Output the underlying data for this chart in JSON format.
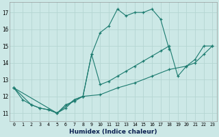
{
  "xlabel": "Humidex (Indice chaleur)",
  "background_color": "#cce8e6",
  "grid_color": "#b5d5d2",
  "line_color": "#1a7a6e",
  "xlim": [
    -0.5,
    23.5
  ],
  "ylim": [
    10.5,
    17.6
  ],
  "xticks": [
    0,
    1,
    2,
    3,
    4,
    5,
    6,
    7,
    8,
    9,
    10,
    11,
    12,
    13,
    14,
    15,
    16,
    17,
    18,
    19,
    20,
    21,
    22,
    23
  ],
  "yticks": [
    11,
    12,
    13,
    14,
    15,
    16,
    17
  ],
  "lines": [
    {
      "x": [
        0,
        1,
        2,
        3,
        4,
        5,
        6,
        7,
        8,
        9,
        10,
        11,
        12,
        13,
        14,
        15,
        16,
        17,
        18
      ],
      "y": [
        12.5,
        11.8,
        11.5,
        11.3,
        11.2,
        11.0,
        11.3,
        11.8,
        12.0,
        14.5,
        15.8,
        16.2,
        17.2,
        16.8,
        17.0,
        17.0,
        17.2,
        16.6,
        14.8
      ]
    },
    {
      "x": [
        0,
        2,
        3,
        4,
        5,
        6,
        7,
        8,
        9,
        10,
        11,
        12,
        13,
        14,
        15,
        16,
        17,
        18,
        19,
        20,
        21,
        22,
        23
      ],
      "y": [
        12.5,
        11.5,
        11.3,
        11.2,
        11.0,
        11.5,
        11.7,
        12.0,
        14.5,
        12.7,
        12.9,
        13.2,
        13.5,
        13.8,
        14.1,
        14.4,
        14.7,
        15.0,
        13.2,
        13.8,
        14.2,
        15.0,
        15.0
      ]
    },
    {
      "x": [
        0,
        5,
        7,
        8,
        10,
        12,
        14,
        16,
        18,
        20,
        21,
        22,
        23
      ],
      "y": [
        12.5,
        11.0,
        11.8,
        12.0,
        12.1,
        12.5,
        12.8,
        13.2,
        13.6,
        13.8,
        14.0,
        14.5,
        15.0
      ]
    }
  ]
}
